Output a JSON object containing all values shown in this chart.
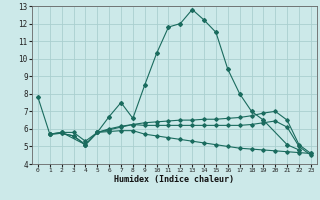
{
  "xlabel": "Humidex (Indice chaleur)",
  "bg_color": "#cce9e9",
  "grid_color": "#aacfcf",
  "line_color": "#1a6b5e",
  "xlim": [
    -0.5,
    23.5
  ],
  "ylim": [
    4,
    13
  ],
  "xticks": [
    0,
    1,
    2,
    3,
    4,
    5,
    6,
    7,
    8,
    9,
    10,
    11,
    12,
    13,
    14,
    15,
    16,
    17,
    18,
    19,
    20,
    21,
    22,
    23
  ],
  "yticks": [
    4,
    5,
    6,
    7,
    8,
    9,
    10,
    11,
    12,
    13
  ],
  "series": [
    {
      "x": [
        0,
        1,
        2,
        4,
        5,
        6,
        7,
        8,
        9,
        10,
        11,
        12,
        13,
        14,
        15,
        16,
        17,
        18,
        19,
        21,
        22
      ],
      "y": [
        7.8,
        5.7,
        5.8,
        5.1,
        5.8,
        6.7,
        7.5,
        6.6,
        8.5,
        10.3,
        11.8,
        12.0,
        12.8,
        12.2,
        11.5,
        9.4,
        8.0,
        7.0,
        6.5,
        5.1,
        4.8
      ]
    },
    {
      "x": [
        1,
        2,
        3,
        4,
        5,
        6,
        7,
        8,
        9,
        10,
        11,
        12,
        13,
        14,
        15,
        16,
        17,
        18,
        19,
        20,
        21,
        22,
        23
      ],
      "y": [
        5.7,
        5.8,
        5.8,
        5.3,
        5.8,
        5.95,
        6.1,
        6.25,
        6.35,
        6.4,
        6.45,
        6.5,
        6.5,
        6.55,
        6.55,
        6.6,
        6.65,
        6.75,
        6.9,
        7.0,
        6.5,
        5.1,
        4.6
      ]
    },
    {
      "x": [
        1,
        2,
        3,
        4,
        5,
        6,
        7,
        8,
        9,
        10,
        11,
        12,
        13,
        14,
        15,
        16,
        17,
        18,
        19,
        20,
        21,
        22,
        23
      ],
      "y": [
        5.7,
        5.75,
        5.6,
        5.1,
        5.8,
        6.0,
        6.15,
        6.25,
        6.2,
        6.2,
        6.2,
        6.2,
        6.2,
        6.2,
        6.2,
        6.2,
        6.2,
        6.25,
        6.35,
        6.45,
        6.1,
        5.0,
        4.5
      ]
    },
    {
      "x": [
        1,
        2,
        3,
        4,
        5,
        6,
        7,
        8,
        9,
        10,
        11,
        12,
        13,
        14,
        15,
        16,
        17,
        18,
        19,
        20,
        21,
        22,
        23
      ],
      "y": [
        5.7,
        5.75,
        5.6,
        5.1,
        5.8,
        5.85,
        5.9,
        5.9,
        5.7,
        5.6,
        5.5,
        5.4,
        5.3,
        5.2,
        5.1,
        5.0,
        4.9,
        4.85,
        4.8,
        4.75,
        4.7,
        4.65,
        4.6
      ]
    }
  ]
}
